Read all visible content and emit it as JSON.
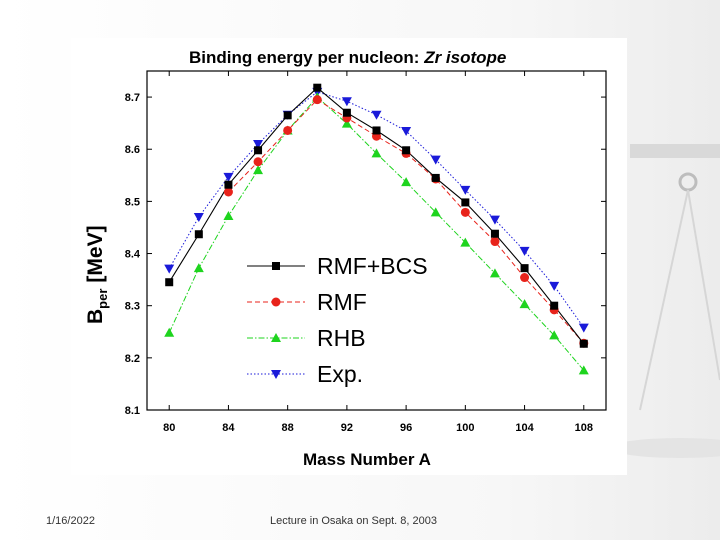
{
  "footer": {
    "date": "1/16/2022",
    "note": "Lecture in Osaka on Sept. 8, 2003"
  },
  "chart_data": {
    "type": "line",
    "title_prefix": "Binding energy per nucleon: ",
    "title_emphasis": "Zr isotope",
    "xlabel_prefix": "Mass Number ",
    "xlabel_symbol": "A",
    "ylabel_symbol": "B",
    "ylabel_subscript": "per",
    "ylabel_unit": "[MeV]",
    "xlim": [
      78.5,
      109.5
    ],
    "ylim": [
      8.1,
      8.75
    ],
    "xticks": [
      80,
      84,
      88,
      92,
      96,
      100,
      104,
      108
    ],
    "yticks": [
      8.1,
      8.2,
      8.3,
      8.4,
      8.5,
      8.6,
      8.7
    ],
    "legend_position": "center-right",
    "series": [
      {
        "name": "RMF+BCS",
        "color": "#000000",
        "marker": "square",
        "line": "solid",
        "x": [
          80,
          82,
          84,
          86,
          88,
          90,
          92,
          94,
          96,
          98,
          100,
          102,
          104,
          106,
          108
        ],
        "y": [
          8.345,
          8.437,
          8.532,
          8.598,
          8.665,
          8.718,
          8.67,
          8.636,
          8.598,
          8.545,
          8.498,
          8.438,
          8.372,
          8.3,
          8.227
        ]
      },
      {
        "name": "RMF",
        "color": "#e8231b",
        "marker": "circle",
        "line": "dashed",
        "x": [
          84,
          86,
          88,
          90,
          92,
          94,
          96,
          98,
          100,
          102,
          104,
          106,
          108
        ],
        "y": [
          8.518,
          8.576,
          8.636,
          8.695,
          8.66,
          8.625,
          8.592,
          8.543,
          8.479,
          8.423,
          8.354,
          8.292,
          8.228
        ]
      },
      {
        "name": "RHB",
        "color": "#1ed41e",
        "marker": "triangle-up",
        "line": "dash-dot",
        "x": [
          80,
          82,
          84,
          86,
          88,
          90,
          92,
          94,
          96,
          98,
          100,
          102,
          104,
          106,
          108
        ],
        "y": [
          8.248,
          8.372,
          8.472,
          8.56,
          8.636,
          8.7,
          8.649,
          8.592,
          8.537,
          8.479,
          8.421,
          8.362,
          8.303,
          8.243,
          8.176
        ]
      },
      {
        "name": "Exp.",
        "color": "#1a1ad9",
        "marker": "triangle-down",
        "line": "dotted",
        "x": [
          80,
          82,
          84,
          86,
          88,
          90,
          92,
          94,
          96,
          98,
          100,
          102,
          104,
          106,
          108
        ],
        "y": [
          8.371,
          8.47,
          8.547,
          8.61,
          8.666,
          8.71,
          8.692,
          8.666,
          8.635,
          8.58,
          8.522,
          8.465,
          8.405,
          8.338,
          8.258
        ]
      }
    ]
  }
}
